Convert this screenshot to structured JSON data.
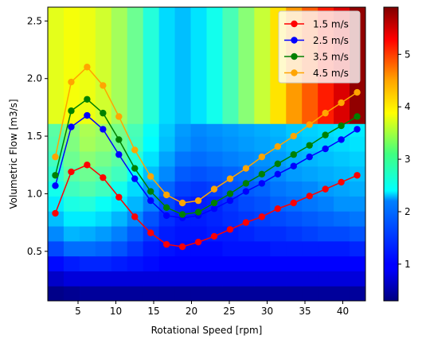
{
  "chart_data": {
    "type": "heatmap",
    "xlabel": "Rotational Speed [rpm]",
    "ylabel": "Volumetric Flow [m3/s]",
    "xlim": [
      1.0,
      43.0
    ],
    "ylim": [
      0.07,
      2.62
    ],
    "xticks": [
      5,
      10,
      15,
      20,
      25,
      30,
      35,
      40
    ],
    "xtick_labels": [
      "5",
      "10",
      "15",
      "20",
      "25",
      "30",
      "35",
      "40"
    ],
    "yticks": [
      0.5,
      1.0,
      1.5,
      2.0,
      2.5
    ],
    "ytick_labels": [
      "0.5",
      "1.0",
      "1.5",
      "2.0",
      "2.5"
    ],
    "colorbar": {
      "colormap": "jet",
      "range": [
        0.3,
        5.9
      ],
      "ticks": [
        1,
        2,
        3,
        4,
        5
      ],
      "tick_labels": [
        "1",
        "2",
        "3",
        "4",
        "5"
      ]
    },
    "heatmap_grid": {
      "x_edges": [
        1.0,
        3.1,
        5.2,
        7.3,
        9.4,
        11.5,
        13.6,
        15.7,
        17.8,
        19.9,
        22.0,
        24.1,
        26.2,
        28.3,
        30.4,
        32.5,
        34.6,
        36.7,
        38.8,
        40.9,
        43.0
      ],
      "y_edges": [
        0.07,
        0.2,
        0.33,
        0.46,
        0.59,
        0.72,
        0.85,
        0.98,
        1.11,
        1.24,
        1.37,
        1.5,
        1.61,
        2.62
      ],
      "values": [
        [
          0.35,
          0.4,
          0.45,
          0.45,
          0.45,
          0.45,
          0.45,
          0.45,
          0.45,
          0.45,
          0.45,
          0.45,
          0.45,
          0.45,
          0.45,
          0.45,
          0.45,
          0.45,
          0.45,
          0.45
        ],
        [
          0.7,
          0.8,
          0.8,
          0.8,
          0.8,
          0.8,
          0.8,
          0.8,
          0.8,
          0.8,
          0.8,
          0.8,
          0.8,
          0.8,
          0.8,
          0.8,
          0.8,
          0.8,
          0.8,
          0.8
        ],
        [
          1.05,
          1.15,
          1.2,
          1.2,
          1.15,
          1.1,
          1.05,
          1.0,
          1.0,
          1.0,
          1.0,
          1.0,
          1.0,
          1.0,
          1.0,
          1.0,
          1.0,
          1.0,
          1.0,
          1.0
        ],
        [
          1.4,
          1.6,
          1.6,
          1.55,
          1.45,
          1.3,
          1.15,
          1.1,
          1.05,
          1.05,
          1.05,
          1.1,
          1.1,
          1.1,
          1.15,
          1.15,
          1.15,
          1.15,
          1.15,
          1.2
        ],
        [
          1.75,
          2.0,
          1.95,
          1.85,
          1.7,
          1.5,
          1.3,
          1.15,
          1.1,
          1.1,
          1.15,
          1.15,
          1.2,
          1.25,
          1.25,
          1.3,
          1.35,
          1.4,
          1.4,
          1.45
        ],
        [
          2.05,
          2.3,
          2.3,
          2.2,
          2.0,
          1.75,
          1.45,
          1.25,
          1.15,
          1.15,
          1.2,
          1.25,
          1.3,
          1.35,
          1.4,
          1.45,
          1.5,
          1.55,
          1.6,
          1.65
        ],
        [
          2.3,
          2.55,
          2.6,
          2.45,
          2.3,
          2.0,
          1.7,
          1.4,
          1.2,
          1.15,
          1.2,
          1.3,
          1.4,
          1.45,
          1.55,
          1.6,
          1.65,
          1.7,
          1.8,
          1.8
        ],
        [
          2.5,
          2.75,
          2.85,
          2.75,
          2.5,
          2.2,
          1.85,
          1.55,
          1.35,
          1.3,
          1.35,
          1.45,
          1.5,
          1.55,
          1.65,
          1.7,
          1.75,
          1.85,
          1.9,
          1.95
        ],
        [
          2.65,
          2.9,
          3.0,
          2.9,
          2.75,
          2.45,
          2.05,
          1.75,
          1.5,
          1.45,
          1.5,
          1.55,
          1.6,
          1.7,
          1.75,
          1.85,
          1.9,
          1.95,
          2.0,
          2.05
        ],
        [
          2.75,
          3.0,
          3.15,
          3.05,
          2.9,
          2.6,
          2.25,
          1.9,
          1.65,
          1.6,
          1.65,
          1.7,
          1.75,
          1.8,
          1.85,
          1.95,
          2.0,
          2.05,
          2.1,
          2.15
        ],
        [
          2.85,
          3.1,
          3.3,
          3.2,
          3.0,
          2.75,
          2.4,
          2.05,
          1.8,
          1.7,
          1.75,
          1.8,
          1.85,
          1.9,
          1.95,
          2.05,
          2.1,
          2.15,
          2.2,
          2.25
        ],
        [
          2.9,
          3.15,
          3.35,
          3.25,
          3.05,
          2.8,
          2.45,
          2.1,
          1.85,
          1.75,
          1.8,
          1.85,
          1.9,
          1.95,
          2.0,
          2.1,
          2.15,
          2.2,
          2.25,
          2.3
        ],
        [
          3.65,
          3.75,
          3.7,
          3.55,
          3.3,
          3.0,
          2.6,
          2.2,
          2.05,
          2.25,
          2.5,
          2.8,
          3.15,
          3.5,
          3.95,
          4.35,
          4.7,
          5.05,
          5.4,
          5.8
        ]
      ]
    },
    "series": [
      {
        "name": "1.5 m/s",
        "color": "#ff0000",
        "x": [
          2.0,
          4.1,
          6.2,
          8.3,
          10.4,
          12.5,
          14.6,
          16.7,
          18.8,
          20.9,
          23.0,
          25.1,
          27.2,
          29.3,
          31.4,
          33.5,
          35.6,
          37.7,
          39.8,
          41.9
        ],
        "y": [
          0.83,
          1.19,
          1.25,
          1.14,
          0.97,
          0.8,
          0.66,
          0.56,
          0.54,
          0.58,
          0.63,
          0.69,
          0.75,
          0.8,
          0.87,
          0.92,
          0.98,
          1.04,
          1.1,
          1.16
        ]
      },
      {
        "name": "2.5 m/s",
        "color": "#0000ff",
        "x": [
          2.0,
          4.1,
          6.2,
          8.3,
          10.4,
          12.5,
          14.6,
          16.7,
          18.8,
          20.9,
          23.0,
          25.1,
          27.2,
          29.3,
          31.4,
          33.5,
          35.6,
          37.7,
          39.8,
          41.9
        ],
        "y": [
          1.07,
          1.58,
          1.68,
          1.56,
          1.34,
          1.13,
          0.94,
          0.81,
          0.79,
          0.81,
          0.87,
          0.94,
          1.02,
          1.09,
          1.17,
          1.24,
          1.32,
          1.39,
          1.47,
          1.56
        ]
      },
      {
        "name": "3.5 m/s",
        "color": "#008000",
        "x": [
          2.0,
          4.1,
          6.2,
          8.3,
          10.4,
          12.5,
          14.6,
          16.7,
          18.8,
          20.9,
          23.0,
          25.1,
          27.2,
          29.3,
          31.4,
          33.5,
          35.6,
          37.7,
          39.8,
          41.9
        ],
        "y": [
          1.16,
          1.72,
          1.82,
          1.7,
          1.47,
          1.22,
          1.02,
          0.88,
          0.82,
          0.84,
          0.92,
          1.0,
          1.09,
          1.17,
          1.26,
          1.34,
          1.42,
          1.51,
          1.59,
          1.67
        ]
      },
      {
        "name": "4.5 m/s",
        "color": "#ffa500",
        "x": [
          2.0,
          4.1,
          6.2,
          8.3,
          10.4,
          12.5,
          14.6,
          16.7,
          18.8,
          20.9,
          23.0,
          25.1,
          27.2,
          29.3,
          31.4,
          33.5,
          35.6,
          37.7,
          39.8,
          41.9
        ],
        "y": [
          1.32,
          1.97,
          2.1,
          1.94,
          1.67,
          1.38,
          1.15,
          0.99,
          0.92,
          0.94,
          1.04,
          1.13,
          1.22,
          1.32,
          1.41,
          1.5,
          1.6,
          1.7,
          1.79,
          1.88
        ]
      }
    ],
    "legend": {
      "location": "upper right"
    }
  }
}
